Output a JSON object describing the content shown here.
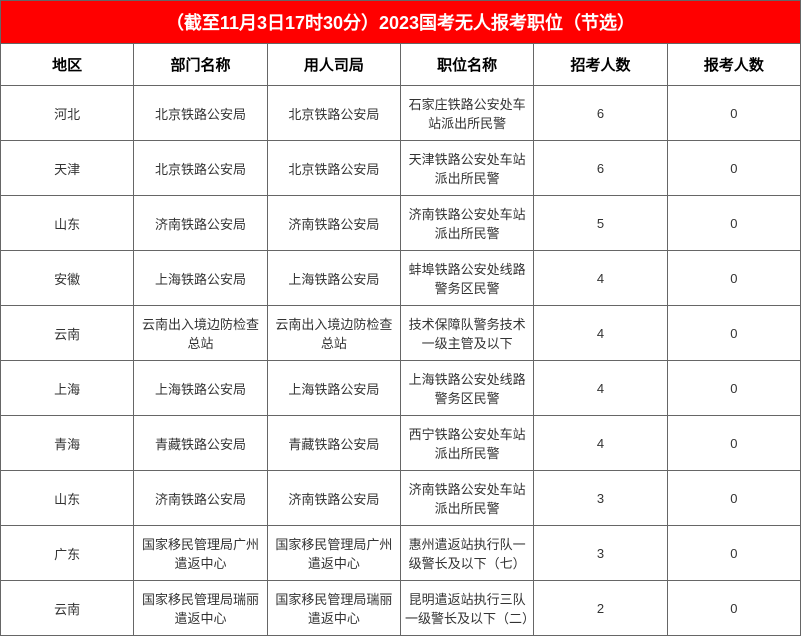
{
  "table": {
    "title": "（截至11月3日17时30分）2023国考无人报考职位（节选）",
    "title_bg_color": "#ff0000",
    "title_text_color": "#ffffff",
    "title_fontsize": 18,
    "border_color": "#666666",
    "cell_fontsize": 13,
    "header_fontsize": 15,
    "columns": [
      {
        "key": "region",
        "label": "地区",
        "width": 60
      },
      {
        "key": "dept",
        "label": "部门名称",
        "width": 185
      },
      {
        "key": "bureau",
        "label": "用人司局",
        "width": 185
      },
      {
        "key": "position",
        "label": "职位名称",
        "width": 185
      },
      {
        "key": "recruit",
        "label": "招考人数",
        "width": 90
      },
      {
        "key": "apply",
        "label": "报考人数",
        "width": 90
      }
    ],
    "rows": [
      {
        "region": "河北",
        "dept": "北京铁路公安局",
        "bureau": "北京铁路公安局",
        "position": "石家庄铁路公安处车站派出所民警",
        "recruit": "6",
        "apply": "0"
      },
      {
        "region": "天津",
        "dept": "北京铁路公安局",
        "bureau": "北京铁路公安局",
        "position": "天津铁路公安处车站派出所民警",
        "recruit": "6",
        "apply": "0"
      },
      {
        "region": "山东",
        "dept": "济南铁路公安局",
        "bureau": "济南铁路公安局",
        "position": "济南铁路公安处车站派出所民警",
        "recruit": "5",
        "apply": "0"
      },
      {
        "region": "安徽",
        "dept": "上海铁路公安局",
        "bureau": "上海铁路公安局",
        "position": "蚌埠铁路公安处线路警务区民警",
        "recruit": "4",
        "apply": "0"
      },
      {
        "region": "云南",
        "dept": "云南出入境边防检查总站",
        "bureau": "云南出入境边防检查总站",
        "position": "技术保障队警务技术一级主管及以下",
        "recruit": "4",
        "apply": "0"
      },
      {
        "region": "上海",
        "dept": "上海铁路公安局",
        "bureau": "上海铁路公安局",
        "position": "上海铁路公安处线路警务区民警",
        "recruit": "4",
        "apply": "0"
      },
      {
        "region": "青海",
        "dept": "青藏铁路公安局",
        "bureau": "青藏铁路公安局",
        "position": "西宁铁路公安处车站派出所民警",
        "recruit": "4",
        "apply": "0"
      },
      {
        "region": "山东",
        "dept": "济南铁路公安局",
        "bureau": "济南铁路公安局",
        "position": "济南铁路公安处车站派出所民警",
        "recruit": "3",
        "apply": "0"
      },
      {
        "region": "广东",
        "dept": "国家移民管理局广州遣返中心",
        "bureau": "国家移民管理局广州遣返中心",
        "position": "惠州遣返站执行队一级警长及以下（七）",
        "recruit": "3",
        "apply": "0"
      },
      {
        "region": "云南",
        "dept": "国家移民管理局瑞丽遣返中心",
        "bureau": "国家移民管理局瑞丽遣返中心",
        "position": "昆明遣返站执行三队一级警长及以下（二）",
        "recruit": "2",
        "apply": "0"
      }
    ]
  }
}
